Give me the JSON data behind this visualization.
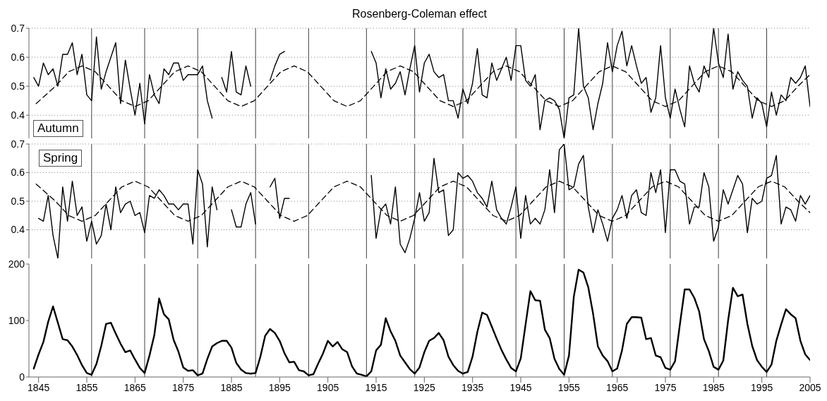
{
  "chart_data": [
    {
      "type": "line",
      "title": "Rosenberg-Coleman effect",
      "annotations": [
        "Autumn"
      ],
      "x": [
        1844,
        1845,
        1846,
        1847,
        1848,
        1849,
        1850,
        1851,
        1852,
        1853,
        1854,
        1855,
        1856,
        1857,
        1858,
        1859,
        1860,
        1861,
        1862,
        1863,
        1864,
        1865,
        1866,
        1867,
        1868,
        1869,
        1870,
        1871,
        1872,
        1873,
        1874,
        1875,
        1876,
        1877,
        1878,
        1879,
        1880,
        1881,
        1882,
        1883,
        1884,
        1885,
        1886,
        1887,
        1888,
        1889,
        1890,
        1891,
        1892,
        1893,
        1894,
        1895,
        1896,
        1897,
        1898,
        1899,
        1900,
        1901,
        1902,
        1903,
        1904,
        1905,
        1906,
        1907,
        1908,
        1909,
        1910,
        1911,
        1912,
        1913,
        1914,
        1915,
        1916,
        1917,
        1918,
        1919,
        1920,
        1921,
        1922,
        1923,
        1924,
        1925,
        1926,
        1927,
        1928,
        1929,
        1930,
        1931,
        1932,
        1933,
        1934,
        1935,
        1936,
        1937,
        1938,
        1939,
        1940,
        1941,
        1942,
        1943,
        1944,
        1945,
        1946,
        1947,
        1948,
        1949,
        1950,
        1951,
        1952,
        1953,
        1954,
        1955,
        1956,
        1957,
        1958,
        1959,
        1960,
        1961,
        1962,
        1963,
        1964,
        1965,
        1966,
        1967,
        1968,
        1969,
        1970,
        1971,
        1972,
        1973,
        1974,
        1975,
        1976,
        1977,
        1978,
        1979,
        1980,
        1981,
        1982,
        1983,
        1984,
        1985,
        1986,
        1987,
        1988,
        1989,
        1990,
        1991,
        1992,
        1993,
        1994,
        1995,
        1996,
        1997,
        1998,
        1999,
        2000,
        2001,
        2002,
        2003,
        2004,
        2005
      ],
      "series": [
        {
          "color": "#000000",
          "line_style": "solid",
          "values": [
            0.53,
            0.5,
            0.58,
            0.54,
            0.56,
            0.5,
            0.61,
            0.61,
            0.65,
            0.54,
            0.61,
            0.47,
            0.45,
            0.67,
            0.49,
            0.55,
            0.6,
            0.65,
            0.44,
            0.59,
            0.49,
            0.4,
            0.51,
            0.37,
            0.54,
            0.47,
            0.44,
            0.56,
            0.54,
            0.58,
            0.58,
            0.52,
            0.54,
            0.54,
            0.54,
            0.57,
            0.45,
            0.39,
            null,
            0.53,
            0.48,
            0.62,
            0.48,
            0.47,
            0.57,
            0.5,
            null,
            null,
            null,
            0.52,
            0.57,
            0.61,
            0.62,
            null,
            null,
            null,
            null,
            null,
            null,
            null,
            null,
            null,
            null,
            null,
            null,
            null,
            null,
            null,
            null,
            null,
            0.62,
            0.58,
            0.46,
            0.56,
            0.49,
            0.51,
            0.55,
            0.47,
            0.56,
            0.64,
            0.48,
            0.58,
            0.61,
            0.55,
            0.53,
            0.54,
            0.45,
            0.45,
            0.39,
            0.49,
            0.44,
            0.51,
            0.63,
            0.47,
            0.46,
            0.58,
            0.52,
            0.56,
            0.6,
            0.52,
            0.64,
            0.64,
            0.52,
            0.5,
            0.54,
            0.35,
            0.45,
            0.46,
            0.45,
            0.42,
            0.32,
            0.46,
            0.47,
            0.7,
            0.5,
            0.46,
            0.35,
            0.44,
            0.51,
            0.65,
            0.55,
            0.64,
            0.69,
            0.57,
            0.64,
            0.57,
            0.51,
            0.53,
            0.41,
            0.46,
            0.64,
            0.46,
            0.39,
            0.49,
            0.42,
            0.36,
            0.57,
            0.51,
            0.48,
            0.57,
            0.53,
            0.7,
            0.58,
            0.53,
            0.68,
            0.49,
            0.55,
            0.52,
            0.5,
            0.39,
            0.46,
            0.44,
            0.36,
            0.48,
            0.4,
            0.47,
            0.45,
            0.53,
            0.51,
            0.53,
            0.57,
            0.43
          ]
        },
        {
          "type": "line",
          "color": "#000000",
          "line_style": "dashed",
          "x": [
            1844.5,
            1848.5,
            1851.25,
            1854,
            1856.75,
            1859.5,
            1862.25,
            1865,
            1867.75,
            1870.5,
            1873.25,
            1876,
            1878.75,
            1881.5,
            1884.25,
            1887,
            1889.75,
            1892.5,
            1895.25,
            1898,
            1900.75,
            1903.5,
            1906.25,
            1909,
            1911.75,
            1914.5,
            1917.25,
            1920,
            1922.75,
            1925.5,
            1928.25,
            1931,
            1933.75,
            1936.5,
            1939.25,
            1942,
            1944.75,
            1947.5,
            1950.25,
            1953,
            1955.75,
            1958.5,
            1961.25,
            1964,
            1966.75,
            1969.5,
            1972.25,
            1975,
            1977.75,
            1980.5,
            1983.25,
            1986,
            1988.75,
            1991.5,
            1994.25,
            1997,
            1999.75,
            2002.5,
            2005
          ],
          "values": [
            0.44,
            0.5,
            0.55,
            0.57,
            0.55,
            0.5,
            0.45,
            0.43,
            0.45,
            0.5,
            0.55,
            0.57,
            0.55,
            0.5,
            0.45,
            0.43,
            0.45,
            0.5,
            0.55,
            0.57,
            0.55,
            0.5,
            0.45,
            0.43,
            0.45,
            0.5,
            0.55,
            0.57,
            0.55,
            0.5,
            0.45,
            0.43,
            0.45,
            0.5,
            0.55,
            0.57,
            0.55,
            0.5,
            0.45,
            0.43,
            0.45,
            0.5,
            0.55,
            0.57,
            0.55,
            0.5,
            0.45,
            0.43,
            0.45,
            0.5,
            0.55,
            0.57,
            0.55,
            0.5,
            0.45,
            0.43,
            0.45,
            0.5,
            0.54
          ]
        }
      ],
      "xlim": [
        1843,
        2005
      ],
      "xticks": [
        1845,
        1855,
        1865,
        1875,
        1885,
        1895,
        1905,
        1915,
        1925,
        1935,
        1945,
        1955,
        1965,
        1975,
        1985,
        1995,
        2005
      ],
      "ylim": [
        0.32,
        0.7
      ],
      "yticks": [
        0.4,
        0.5,
        0.6,
        0.7
      ],
      "grid": "y",
      "tick_labels": "y",
      "marker": "none",
      "ref_lines": [
        {
          "axis": "x",
          "value": 1856,
          "color": "#404040"
        },
        {
          "axis": "x",
          "value": 1867,
          "color": "#404040"
        },
        {
          "axis": "x",
          "value": 1878,
          "color": "#404040"
        },
        {
          "axis": "x",
          "value": 1890,
          "color": "#404040"
        },
        {
          "axis": "x",
          "value": 1901,
          "color": "#404040"
        },
        {
          "axis": "x",
          "value": 1913,
          "color": "#404040"
        },
        {
          "axis": "x",
          "value": 1923,
          "color": "#404040"
        },
        {
          "axis": "x",
          "value": 1933,
          "color": "#404040"
        },
        {
          "axis": "x",
          "value": 1944,
          "color": "#404040"
        },
        {
          "axis": "x",
          "value": 1954,
          "color": "#404040"
        },
        {
          "axis": "x",
          "value": 1964,
          "color": "#404040"
        },
        {
          "axis": "x",
          "value": 1976,
          "color": "#404040"
        },
        {
          "axis": "x",
          "value": 1986,
          "color": "#404040"
        },
        {
          "axis": "x",
          "value": 1996,
          "color": "#404040"
        }
      ]
    },
    {
      "type": "line",
      "annotations": [
        "Spring"
      ],
      "x": [
        1845,
        1846,
        1847,
        1848,
        1849,
        1850,
        1851,
        1852,
        1853,
        1854,
        1855,
        1856,
        1857,
        1858,
        1859,
        1860,
        1861,
        1862,
        1863,
        1864,
        1865,
        1866,
        1867,
        1868,
        1869,
        1870,
        1871,
        1872,
        1873,
        1874,
        1875,
        1876,
        1877,
        1878,
        1879,
        1880,
        1881,
        1882,
        1883,
        1884,
        1885,
        1886,
        1887,
        1888,
        1889,
        1890,
        1891,
        1892,
        1893,
        1894,
        1895,
        1896,
        1897,
        1898,
        1899,
        1900,
        1901,
        1902,
        1903,
        1904,
        1905,
        1906,
        1907,
        1908,
        1909,
        1910,
        1911,
        1912,
        1913,
        1914,
        1915,
        1916,
        1917,
        1918,
        1919,
        1920,
        1921,
        1922,
        1923,
        1924,
        1925,
        1926,
        1927,
        1928,
        1929,
        1930,
        1931,
        1932,
        1933,
        1934,
        1935,
        1936,
        1937,
        1938,
        1939,
        1940,
        1941,
        1942,
        1943,
        1944,
        1945,
        1946,
        1947,
        1948,
        1949,
        1950,
        1951,
        1952,
        1953,
        1954,
        1955,
        1956,
        1957,
        1958,
        1959,
        1960,
        1961,
        1962,
        1963,
        1964,
        1965,
        1966,
        1967,
        1968,
        1969,
        1970,
        1971,
        1972,
        1973,
        1974,
        1975,
        1976,
        1977,
        1978,
        1979,
        1980,
        1981,
        1982,
        1983,
        1984,
        1985,
        1986,
        1987,
        1988,
        1989,
        1990,
        1991,
        1992,
        1993,
        1994,
        1995,
        1996,
        1997,
        1998,
        1999,
        2000,
        2001,
        2002,
        2003,
        2004,
        2005
      ],
      "series": [
        {
          "color": "#000000",
          "line_style": "solid",
          "values": [
            0.44,
            0.43,
            0.52,
            0.38,
            0.3,
            0.55,
            0.43,
            0.57,
            0.45,
            0.48,
            0.36,
            0.43,
            0.35,
            0.38,
            0.49,
            0.4,
            0.55,
            0.46,
            0.49,
            0.5,
            0.45,
            0.46,
            0.39,
            0.52,
            0.51,
            0.54,
            0.52,
            0.49,
            0.49,
            0.47,
            0.49,
            0.49,
            0.35,
            0.61,
            0.56,
            0.34,
            0.55,
            0.47,
            null,
            null,
            0.47,
            0.41,
            0.41,
            0.49,
            0.53,
            0.42,
            null,
            null,
            0.55,
            0.58,
            0.44,
            0.51,
            0.51,
            null,
            null,
            null,
            null,
            null,
            null,
            null,
            null,
            null,
            null,
            null,
            null,
            null,
            null,
            null,
            null,
            0.59,
            0.37,
            0.47,
            0.49,
            0.42,
            0.55,
            0.35,
            0.32,
            0.37,
            0.44,
            0.53,
            0.43,
            0.46,
            0.65,
            0.53,
            0.54,
            0.38,
            0.4,
            0.6,
            0.58,
            0.59,
            0.57,
            0.53,
            0.51,
            0.48,
            0.57,
            0.47,
            0.44,
            0.42,
            0.48,
            0.55,
            0.37,
            0.52,
            0.42,
            0.44,
            0.42,
            0.47,
            0.61,
            0.46,
            0.68,
            0.7,
            0.54,
            0.55,
            0.63,
            0.66,
            0.48,
            0.39,
            0.47,
            0.42,
            0.36,
            0.44,
            0.47,
            0.52,
            0.44,
            0.52,
            0.54,
            0.46,
            0.45,
            0.6,
            0.53,
            0.61,
            0.39,
            0.61,
            0.61,
            0.57,
            0.56,
            0.42,
            0.48,
            0.48,
            0.6,
            0.55,
            0.36,
            0.41,
            0.54,
            0.49,
            0.54,
            0.59,
            0.56,
            0.39,
            0.51,
            0.49,
            0.5,
            0.58,
            0.59,
            0.66,
            0.42,
            0.48,
            0.47,
            0.43,
            0.52,
            0.49,
            0.52
          ]
        },
        {
          "type": "line",
          "color": "#000000",
          "line_style": "dashed",
          "x": [
            1844.5,
            1848.5,
            1851.25,
            1854,
            1856.75,
            1859.5,
            1862.25,
            1865,
            1867.75,
            1870.5,
            1873.25,
            1876,
            1878.75,
            1881.5,
            1884.25,
            1887,
            1889.75,
            1892.5,
            1895.25,
            1898,
            1900.75,
            1903.5,
            1906.25,
            1909,
            1911.75,
            1914.5,
            1917.25,
            1920,
            1922.75,
            1925.5,
            1928.25,
            1931,
            1933.75,
            1936.5,
            1939.25,
            1942,
            1944.75,
            1947.5,
            1950.25,
            1953,
            1955.75,
            1958.5,
            1961.25,
            1964,
            1966.75,
            1969.5,
            1972.25,
            1975,
            1977.75,
            1980.5,
            1983.25,
            1986,
            1988.75,
            1991.5,
            1994.25,
            1997,
            1999.75,
            2002.5,
            2005
          ],
          "values": [
            0.56,
            0.5,
            0.45,
            0.43,
            0.45,
            0.5,
            0.55,
            0.57,
            0.55,
            0.5,
            0.45,
            0.43,
            0.45,
            0.5,
            0.55,
            0.57,
            0.55,
            0.5,
            0.45,
            0.43,
            0.45,
            0.5,
            0.55,
            0.57,
            0.55,
            0.5,
            0.45,
            0.43,
            0.45,
            0.5,
            0.55,
            0.57,
            0.55,
            0.5,
            0.45,
            0.43,
            0.45,
            0.5,
            0.55,
            0.57,
            0.55,
            0.5,
            0.45,
            0.43,
            0.45,
            0.5,
            0.55,
            0.57,
            0.55,
            0.5,
            0.45,
            0.43,
            0.45,
            0.5,
            0.55,
            0.57,
            0.55,
            0.5,
            0.46
          ]
        }
      ],
      "xlim": [
        1843,
        2005
      ],
      "xticks": [
        1845,
        1855,
        1865,
        1875,
        1885,
        1895,
        1905,
        1915,
        1925,
        1935,
        1945,
        1955,
        1965,
        1975,
        1985,
        1995,
        2005
      ],
      "ylim": [
        0.3,
        0.7
      ],
      "yticks": [
        0.4,
        0.5,
        0.6,
        0.7
      ],
      "grid": "y",
      "tick_labels": "y",
      "marker": "none",
      "ref_lines": [
        {
          "axis": "x",
          "value": 1856,
          "color": "#404040"
        },
        {
          "axis": "x",
          "value": 1867,
          "color": "#404040"
        },
        {
          "axis": "x",
          "value": 1878,
          "color": "#404040"
        },
        {
          "axis": "x",
          "value": 1890,
          "color": "#404040"
        },
        {
          "axis": "x",
          "value": 1901,
          "color": "#404040"
        },
        {
          "axis": "x",
          "value": 1913,
          "color": "#404040"
        },
        {
          "axis": "x",
          "value": 1923,
          "color": "#404040"
        },
        {
          "axis": "x",
          "value": 1933,
          "color": "#404040"
        },
        {
          "axis": "x",
          "value": 1944,
          "color": "#404040"
        },
        {
          "axis": "x",
          "value": 1954,
          "color": "#404040"
        },
        {
          "axis": "x",
          "value": 1964,
          "color": "#404040"
        },
        {
          "axis": "x",
          "value": 1976,
          "color": "#404040"
        },
        {
          "axis": "x",
          "value": 1986,
          "color": "#404040"
        },
        {
          "axis": "x",
          "value": 1996,
          "color": "#404040"
        }
      ]
    },
    {
      "type": "line",
      "x": [
        1844,
        1845,
        1846,
        1847,
        1848,
        1849,
        1850,
        1851,
        1852,
        1853,
        1854,
        1855,
        1856,
        1857,
        1858,
        1859,
        1860,
        1861,
        1862,
        1863,
        1864,
        1865,
        1866,
        1867,
        1868,
        1869,
        1870,
        1871,
        1872,
        1873,
        1874,
        1875,
        1876,
        1877,
        1878,
        1879,
        1880,
        1881,
        1882,
        1883,
        1884,
        1885,
        1886,
        1887,
        1888,
        1889,
        1890,
        1891,
        1892,
        1893,
        1894,
        1895,
        1896,
        1897,
        1898,
        1899,
        1900,
        1901,
        1902,
        1903,
        1904,
        1905,
        1906,
        1907,
        1908,
        1909,
        1910,
        1911,
        1912,
        1913,
        1914,
        1915,
        1916,
        1917,
        1918,
        1919,
        1920,
        1921,
        1922,
        1923,
        1924,
        1925,
        1926,
        1927,
        1928,
        1929,
        1930,
        1931,
        1932,
        1933,
        1934,
        1935,
        1936,
        1937,
        1938,
        1939,
        1940,
        1941,
        1942,
        1943,
        1944,
        1945,
        1946,
        1947,
        1948,
        1949,
        1950,
        1951,
        1952,
        1953,
        1954,
        1955,
        1956,
        1957,
        1958,
        1959,
        1960,
        1961,
        1962,
        1963,
        1964,
        1965,
        1966,
        1967,
        1968,
        1969,
        1970,
        1971,
        1972,
        1973,
        1974,
        1975,
        1976,
        1977,
        1978,
        1979,
        1980,
        1981,
        1982,
        1983,
        1984,
        1985,
        1986,
        1987,
        1988,
        1989,
        1990,
        1991,
        1992,
        1993,
        1994,
        1995,
        1996,
        1997,
        1998,
        1999,
        2000,
        2001,
        2002,
        2003,
        2004,
        2005
      ],
      "series": [
        {
          "color": "#000000",
          "line_style": "solid",
          "values": [
            15,
            40,
            62,
            98,
            125,
            96,
            67,
            65,
            54,
            39,
            21,
            7,
            4,
            23,
            55,
            94,
            96,
            77,
            59,
            44,
            47,
            31,
            16,
            7,
            38,
            74,
            139,
            111,
            102,
            66,
            45,
            17,
            11,
            12,
            3,
            6,
            32,
            54,
            60,
            64,
            64,
            52,
            25,
            13,
            7,
            6,
            7,
            36,
            73,
            85,
            78,
            64,
            42,
            26,
            27,
            12,
            10,
            3,
            5,
            24,
            42,
            64,
            54,
            62,
            49,
            44,
            19,
            6,
            4,
            1,
            10,
            47,
            57,
            104,
            81,
            64,
            38,
            26,
            14,
            6,
            17,
            44,
            64,
            69,
            78,
            65,
            36,
            21,
            11,
            6,
            9,
            36,
            80,
            114,
            110,
            89,
            68,
            48,
            31,
            16,
            10,
            33,
            93,
            152,
            136,
            135,
            84,
            69,
            32,
            14,
            4,
            38,
            142,
            190,
            185,
            159,
            112,
            54,
            38,
            28,
            10,
            15,
            47,
            94,
            106,
            106,
            105,
            67,
            69,
            38,
            35,
            16,
            13,
            28,
            93,
            155,
            155,
            140,
            116,
            67,
            46,
            18,
            13,
            29,
            100,
            158,
            143,
            146,
            94,
            55,
            30,
            18,
            9,
            22,
            64,
            93,
            120,
            111,
            104,
            64,
            40,
            30
          ]
        }
      ],
      "xlim": [
        1843,
        2005
      ],
      "xticks": [
        1845,
        1855,
        1865,
        1875,
        1885,
        1895,
        1905,
        1915,
        1925,
        1935,
        1945,
        1955,
        1965,
        1975,
        1985,
        1995,
        2005
      ],
      "ylim": [
        0,
        200
      ],
      "yticks": [
        0,
        100,
        200
      ],
      "marker": "none",
      "ref_lines": [
        {
          "axis": "x",
          "value": 1856,
          "color": "#404040"
        },
        {
          "axis": "x",
          "value": 1867,
          "color": "#404040"
        },
        {
          "axis": "x",
          "value": 1878,
          "color": "#404040"
        },
        {
          "axis": "x",
          "value": 1890,
          "color": "#404040"
        },
        {
          "axis": "x",
          "value": 1901,
          "color": "#404040"
        },
        {
          "axis": "x",
          "value": 1913,
          "color": "#404040"
        },
        {
          "axis": "x",
          "value": 1923,
          "color": "#404040"
        },
        {
          "axis": "x",
          "value": 1933,
          "color": "#404040"
        },
        {
          "axis": "x",
          "value": 1944,
          "color": "#404040"
        },
        {
          "axis": "x",
          "value": 1954,
          "color": "#404040"
        },
        {
          "axis": "x",
          "value": 1964,
          "color": "#404040"
        },
        {
          "axis": "x",
          "value": 1976,
          "color": "#404040"
        },
        {
          "axis": "x",
          "value": 1986,
          "color": "#404040"
        },
        {
          "axis": "x",
          "value": 1996,
          "color": "#404040"
        }
      ]
    }
  ]
}
